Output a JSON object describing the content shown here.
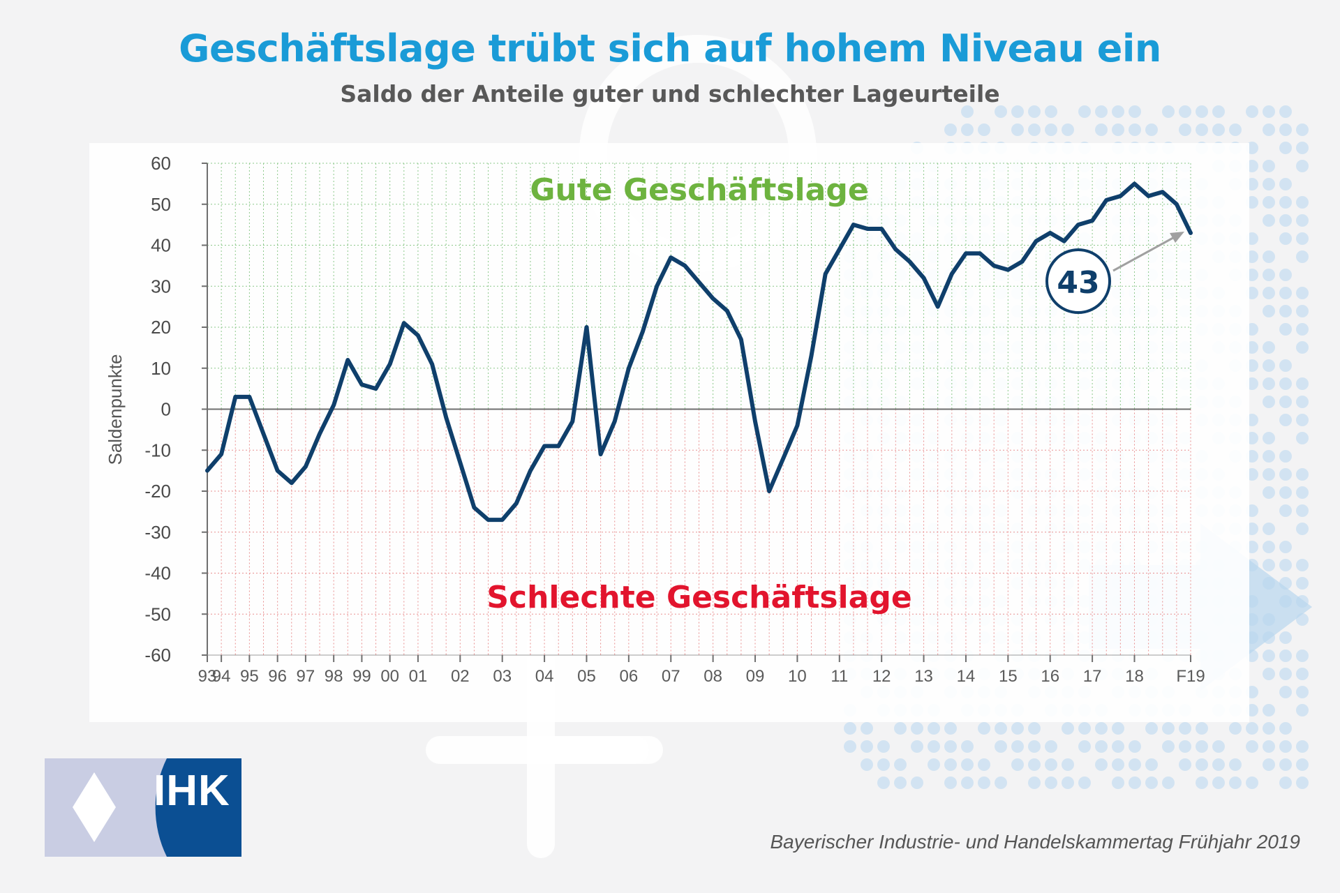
{
  "header": {
    "title": "Geschäftslage trübt sich auf hohem Niveau ein",
    "subtitle": "Saldo der Anteile guter und schlechter Lageurteile"
  },
  "logo": {
    "text": "IHK",
    "colors": {
      "brand": "#0b4f93",
      "light": "#c9cde3"
    }
  },
  "footer": {
    "source": "Bayerischer Industrie- und Handelskammertag Frühjahr 2019"
  },
  "colors": {
    "title": "#1a9bd7",
    "line": "#0f3f6b",
    "good": "#6db33f",
    "bad": "#e2142d",
    "grid_positive": "#8cc88a",
    "grid_negative": "#e88f8f",
    "callout_arrow": "#a0a0a0"
  },
  "chart_data": {
    "type": "line",
    "ylabel": "Saldenpunkte",
    "xlabel": "",
    "ylim": [
      -60,
      60
    ],
    "yticks": [
      60,
      50,
      40,
      30,
      20,
      10,
      0,
      -10,
      -20,
      -30,
      -40,
      -50,
      -60
    ],
    "grid": true,
    "x_tick_labels": [
      {
        "label": "93",
        "index": 0
      },
      {
        "label": "94",
        "index": 1
      },
      {
        "label": "95",
        "index": 3
      },
      {
        "label": "96",
        "index": 5
      },
      {
        "label": "97",
        "index": 7
      },
      {
        "label": "98",
        "index": 9
      },
      {
        "label": "99",
        "index": 11
      },
      {
        "label": "00",
        "index": 13
      },
      {
        "label": "01",
        "index": 15
      },
      {
        "label": "02",
        "index": 18
      },
      {
        "label": "03",
        "index": 21
      },
      {
        "label": "04",
        "index": 24
      },
      {
        "label": "05",
        "index": 27
      },
      {
        "label": "06",
        "index": 30
      },
      {
        "label": "07",
        "index": 33
      },
      {
        "label": "08",
        "index": 36
      },
      {
        "label": "09",
        "index": 39
      },
      {
        "label": "10",
        "index": 42
      },
      {
        "label": "11",
        "index": 45
      },
      {
        "label": "12",
        "index": 48
      },
      {
        "label": "13",
        "index": 51
      },
      {
        "label": "14",
        "index": 54
      },
      {
        "label": "15",
        "index": 57
      },
      {
        "label": "16",
        "index": 60
      },
      {
        "label": "17",
        "index": 63
      },
      {
        "label": "18",
        "index": 66
      },
      {
        "label": "F19",
        "index": 70
      }
    ],
    "series": [
      {
        "values": [
          -15,
          -11,
          3,
          3,
          -6,
          -15,
          -18,
          -14,
          -6,
          1,
          12,
          6,
          5,
          11,
          21,
          18,
          11,
          -2,
          -13,
          -24,
          -27,
          -27,
          -23,
          -15,
          -9,
          -9,
          -3,
          20,
          -11,
          -3,
          10,
          19,
          30,
          37,
          35,
          31,
          27,
          24,
          17,
          -3,
          -20,
          -12,
          -4,
          13,
          33,
          39,
          45,
          44,
          44,
          39,
          36,
          32,
          25,
          33,
          38,
          38,
          35,
          34,
          36,
          41,
          43,
          41,
          45,
          46,
          51,
          52,
          55,
          52,
          53,
          50,
          43
        ]
      }
    ],
    "annotations": [
      {
        "text": "Gute Geschäftslage",
        "color": "#6db33f"
      },
      {
        "text": "Schlechte Geschäftslage",
        "color": "#e2142d"
      },
      {
        "text": "43",
        "type": "callout",
        "points_to": "last"
      }
    ]
  }
}
